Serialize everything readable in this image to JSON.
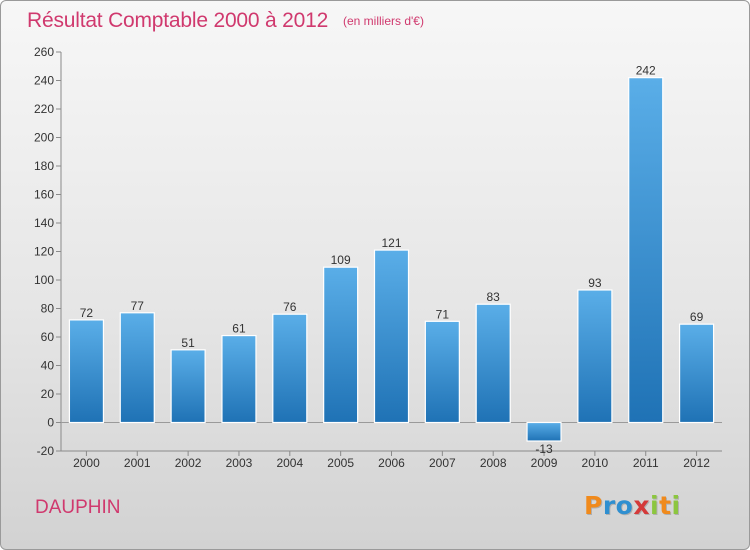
{
  "header": {
    "title": "Résultat Comptable 2000 à 2012",
    "subtitle": "(en milliers d'€)"
  },
  "footer": {
    "place": "DAUPHIN",
    "logo": {
      "letters": [
        "P",
        "r",
        "o",
        "x",
        "i",
        "t",
        "i"
      ],
      "colors": [
        "#f08a1c",
        "#2f8fd0",
        "#2f8fd0",
        "#d43a3a",
        "#8cc63f",
        "#f08a1c",
        "#8cc63f"
      ]
    }
  },
  "colors": {
    "bar_top": "#5aaee8",
    "bar_bottom": "#1f72b5",
    "accent": "#d0396e"
  },
  "chart_data": {
    "type": "bar",
    "categories": [
      "2000",
      "2001",
      "2002",
      "2003",
      "2004",
      "2005",
      "2006",
      "2007",
      "2008",
      "2009",
      "2010",
      "2011",
      "2012"
    ],
    "values": [
      72,
      77,
      51,
      61,
      76,
      109,
      121,
      71,
      83,
      -13,
      93,
      242,
      69
    ],
    "value_labels": [
      "72",
      "77",
      "51",
      "61",
      "76",
      "109",
      "121",
      "71",
      "83",
      "-13",
      "93",
      "242",
      "69"
    ],
    "yticks": [
      -20,
      0,
      20,
      40,
      60,
      80,
      100,
      120,
      140,
      160,
      180,
      200,
      220,
      240,
      260
    ],
    "ylim": [
      -20,
      260
    ],
    "grid": false
  }
}
